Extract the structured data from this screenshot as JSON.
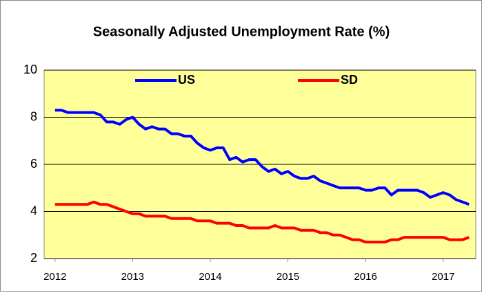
{
  "chart_data": {
    "type": "line",
    "title": "Seasonally Adjusted Unemployment Rate (%)",
    "x": [
      2012,
      2012.0833,
      2012.1667,
      2012.25,
      2012.3333,
      2012.4167,
      2012.5,
      2012.5833,
      2012.6667,
      2012.75,
      2012.8333,
      2012.9167,
      2013,
      2013.0833,
      2013.1667,
      2013.25,
      2013.3333,
      2013.4167,
      2013.5,
      2013.5833,
      2013.6667,
      2013.75,
      2013.8333,
      2013.9167,
      2014,
      2014.0833,
      2014.1667,
      2014.25,
      2014.3333,
      2014.4167,
      2014.5,
      2014.5833,
      2014.6667,
      2014.75,
      2014.8333,
      2014.9167,
      2015,
      2015.0833,
      2015.1667,
      2015.25,
      2015.3333,
      2015.4167,
      2015.5,
      2015.5833,
      2015.6667,
      2015.75,
      2015.8333,
      2015.9167,
      2016,
      2016.0833,
      2016.1667,
      2016.25,
      2016.3333,
      2016.4167,
      2016.5,
      2016.5833,
      2016.6667,
      2016.75,
      2016.8333,
      2016.9167,
      2017,
      2017.0833,
      2017.1667,
      2017.25,
      2017.3333
    ],
    "series": [
      {
        "name": "US",
        "color": "#0000ff",
        "values": [
          8.3,
          8.3,
          8.2,
          8.2,
          8.2,
          8.2,
          8.2,
          8.1,
          7.8,
          7.8,
          7.7,
          7.9,
          8.0,
          7.7,
          7.5,
          7.6,
          7.5,
          7.5,
          7.3,
          7.3,
          7.2,
          7.2,
          6.9,
          6.7,
          6.6,
          6.7,
          6.7,
          6.2,
          6.3,
          6.1,
          6.2,
          6.2,
          5.9,
          5.7,
          5.8,
          5.6,
          5.7,
          5.5,
          5.4,
          5.4,
          5.5,
          5.3,
          5.2,
          5.1,
          5.0,
          5.0,
          5.0,
          5.0,
          4.9,
          4.9,
          5.0,
          5.0,
          4.7,
          4.9,
          4.9,
          4.9,
          4.9,
          4.8,
          4.6,
          4.7,
          4.8,
          4.7,
          4.5,
          4.4,
          4.3
        ]
      },
      {
        "name": "SD",
        "color": "#ff0000",
        "values": [
          4.3,
          4.3,
          4.3,
          4.3,
          4.3,
          4.3,
          4.4,
          4.3,
          4.3,
          4.2,
          4.1,
          4.0,
          3.9,
          3.9,
          3.8,
          3.8,
          3.8,
          3.8,
          3.7,
          3.7,
          3.7,
          3.7,
          3.6,
          3.6,
          3.6,
          3.5,
          3.5,
          3.5,
          3.4,
          3.4,
          3.3,
          3.3,
          3.3,
          3.3,
          3.4,
          3.3,
          3.3,
          3.3,
          3.2,
          3.2,
          3.2,
          3.1,
          3.1,
          3.0,
          3.0,
          2.9,
          2.8,
          2.8,
          2.7,
          2.7,
          2.7,
          2.7,
          2.8,
          2.8,
          2.9,
          2.9,
          2.9,
          2.9,
          2.9,
          2.9,
          2.9,
          2.8,
          2.8,
          2.8,
          2.9
        ]
      }
    ],
    "xlim": [
      2011.86,
      2017.42
    ],
    "xticks": [
      2012,
      2013,
      2014,
      2015,
      2016,
      2017
    ],
    "ylim": [
      2,
      10
    ],
    "yticks": [
      2,
      4,
      6,
      8,
      10
    ],
    "grid": true,
    "legend": "top"
  }
}
